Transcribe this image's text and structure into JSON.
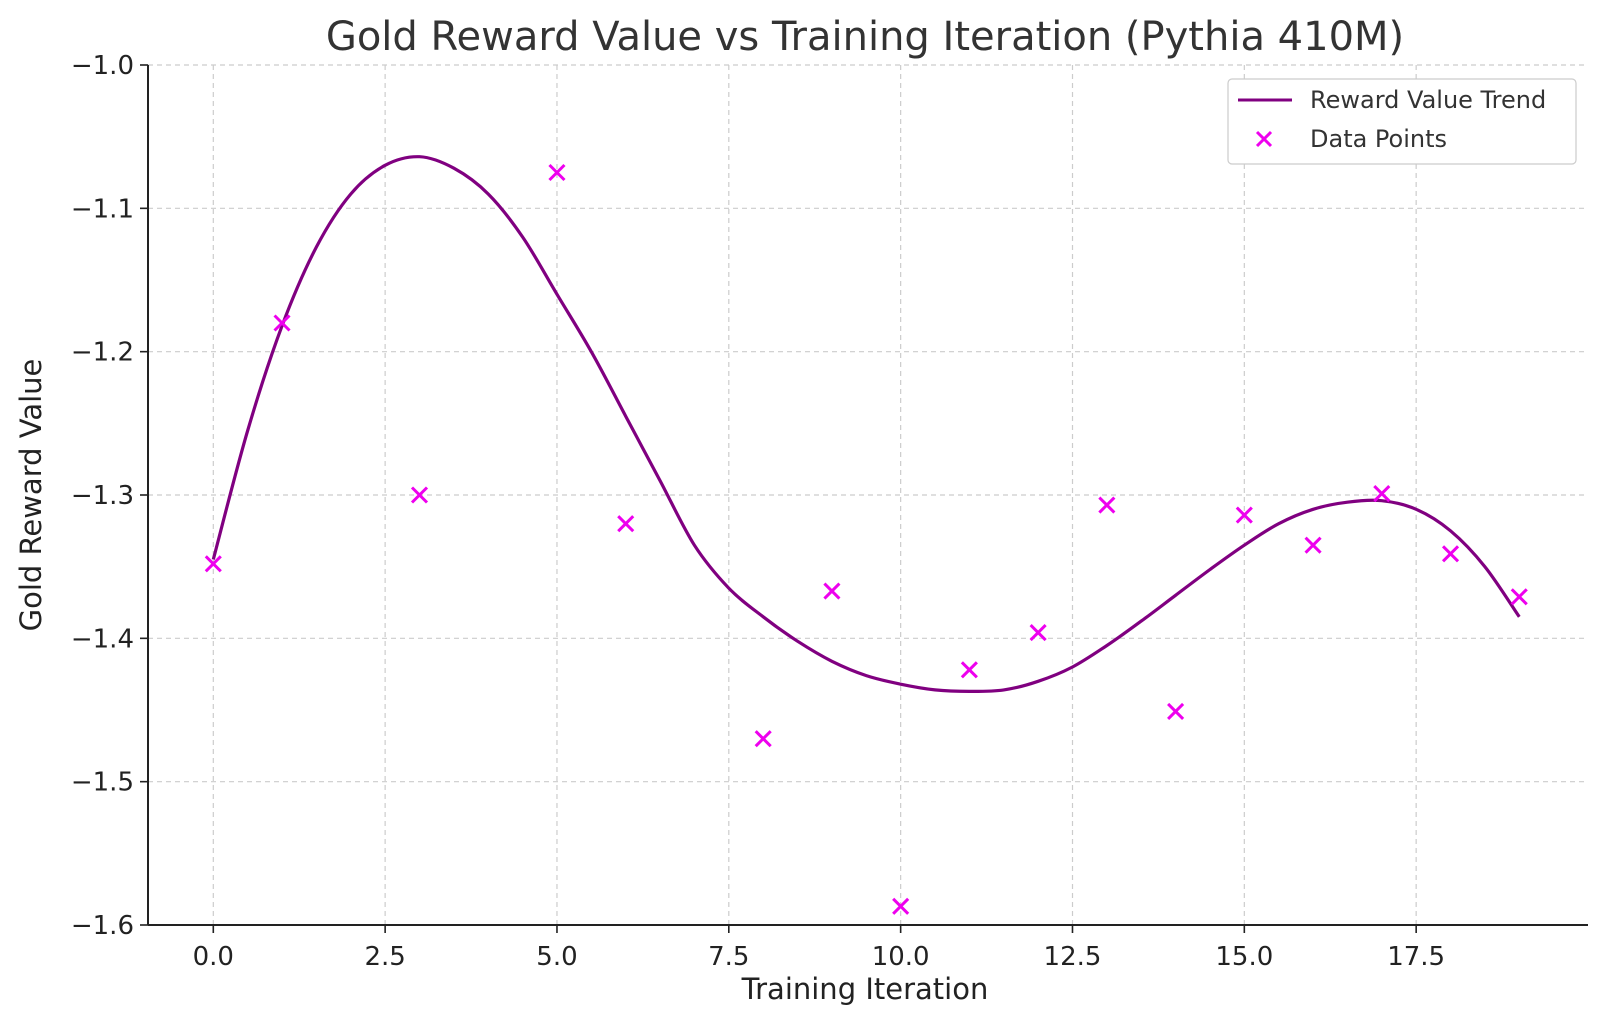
{
  "chart_data": {
    "type": "line",
    "title": "Gold Reward Value vs Training Iteration (Pythia 410M)",
    "xlabel": "Training Iteration",
    "ylabel": "Gold Reward Value",
    "xlim": [
      -0.95,
      20.0
    ],
    "ylim": [
      -1.6,
      -1.0
    ],
    "xticks": [
      0.0,
      2.5,
      5.0,
      7.5,
      10.0,
      12.5,
      15.0,
      17.5
    ],
    "xtick_labels": [
      "0.0",
      "2.5",
      "5.0",
      "7.5",
      "10.0",
      "12.5",
      "15.0",
      "17.5"
    ],
    "yticks": [
      -1.6,
      -1.5,
      -1.4,
      -1.3,
      -1.2,
      -1.1,
      -1.0
    ],
    "ytick_labels": [
      "−1.6",
      "−1.5",
      "−1.4",
      "−1.3",
      "−1.2",
      "−1.1",
      "−1.0"
    ],
    "grid": true,
    "legend_position": "top-right",
    "series": [
      {
        "name": "Reward Value Trend",
        "kind": "line",
        "color": "#800080",
        "x": [
          0,
          0.5,
          1,
          1.5,
          2,
          2.5,
          3,
          3.5,
          4,
          4.5,
          5,
          5.5,
          6,
          6.5,
          7,
          7.5,
          8,
          8.5,
          9,
          9.5,
          10,
          10.5,
          11,
          11.5,
          12,
          12.5,
          13,
          13.5,
          14,
          14.5,
          15,
          15.5,
          16,
          16.5,
          17,
          17.5,
          18,
          18.5,
          19
        ],
        "y": [
          -1.345,
          -1.255,
          -1.182,
          -1.127,
          -1.09,
          -1.07,
          -1.064,
          -1.072,
          -1.09,
          -1.12,
          -1.16,
          -1.2,
          -1.245,
          -1.29,
          -1.335,
          -1.365,
          -1.385,
          -1.402,
          -1.416,
          -1.426,
          -1.432,
          -1.436,
          -1.437,
          -1.436,
          -1.43,
          -1.42,
          -1.405,
          -1.388,
          -1.37,
          -1.352,
          -1.335,
          -1.32,
          -1.31,
          -1.305,
          -1.304,
          -1.31,
          -1.325,
          -1.35,
          -1.385
        ]
      },
      {
        "name": "Data Points",
        "kind": "scatter",
        "marker": "x",
        "color": "#ee00ee",
        "x": [
          0,
          1,
          3,
          5,
          6,
          8,
          9,
          10,
          11,
          12,
          13,
          14,
          15,
          16,
          17,
          18,
          19
        ],
        "y": [
          -1.348,
          -1.18,
          -1.3,
          -1.075,
          -1.32,
          -1.47,
          -1.367,
          -1.587,
          -1.422,
          -1.396,
          -1.307,
          -1.451,
          -1.314,
          -1.335,
          -1.299,
          -1.341,
          -1.371
        ]
      }
    ]
  }
}
